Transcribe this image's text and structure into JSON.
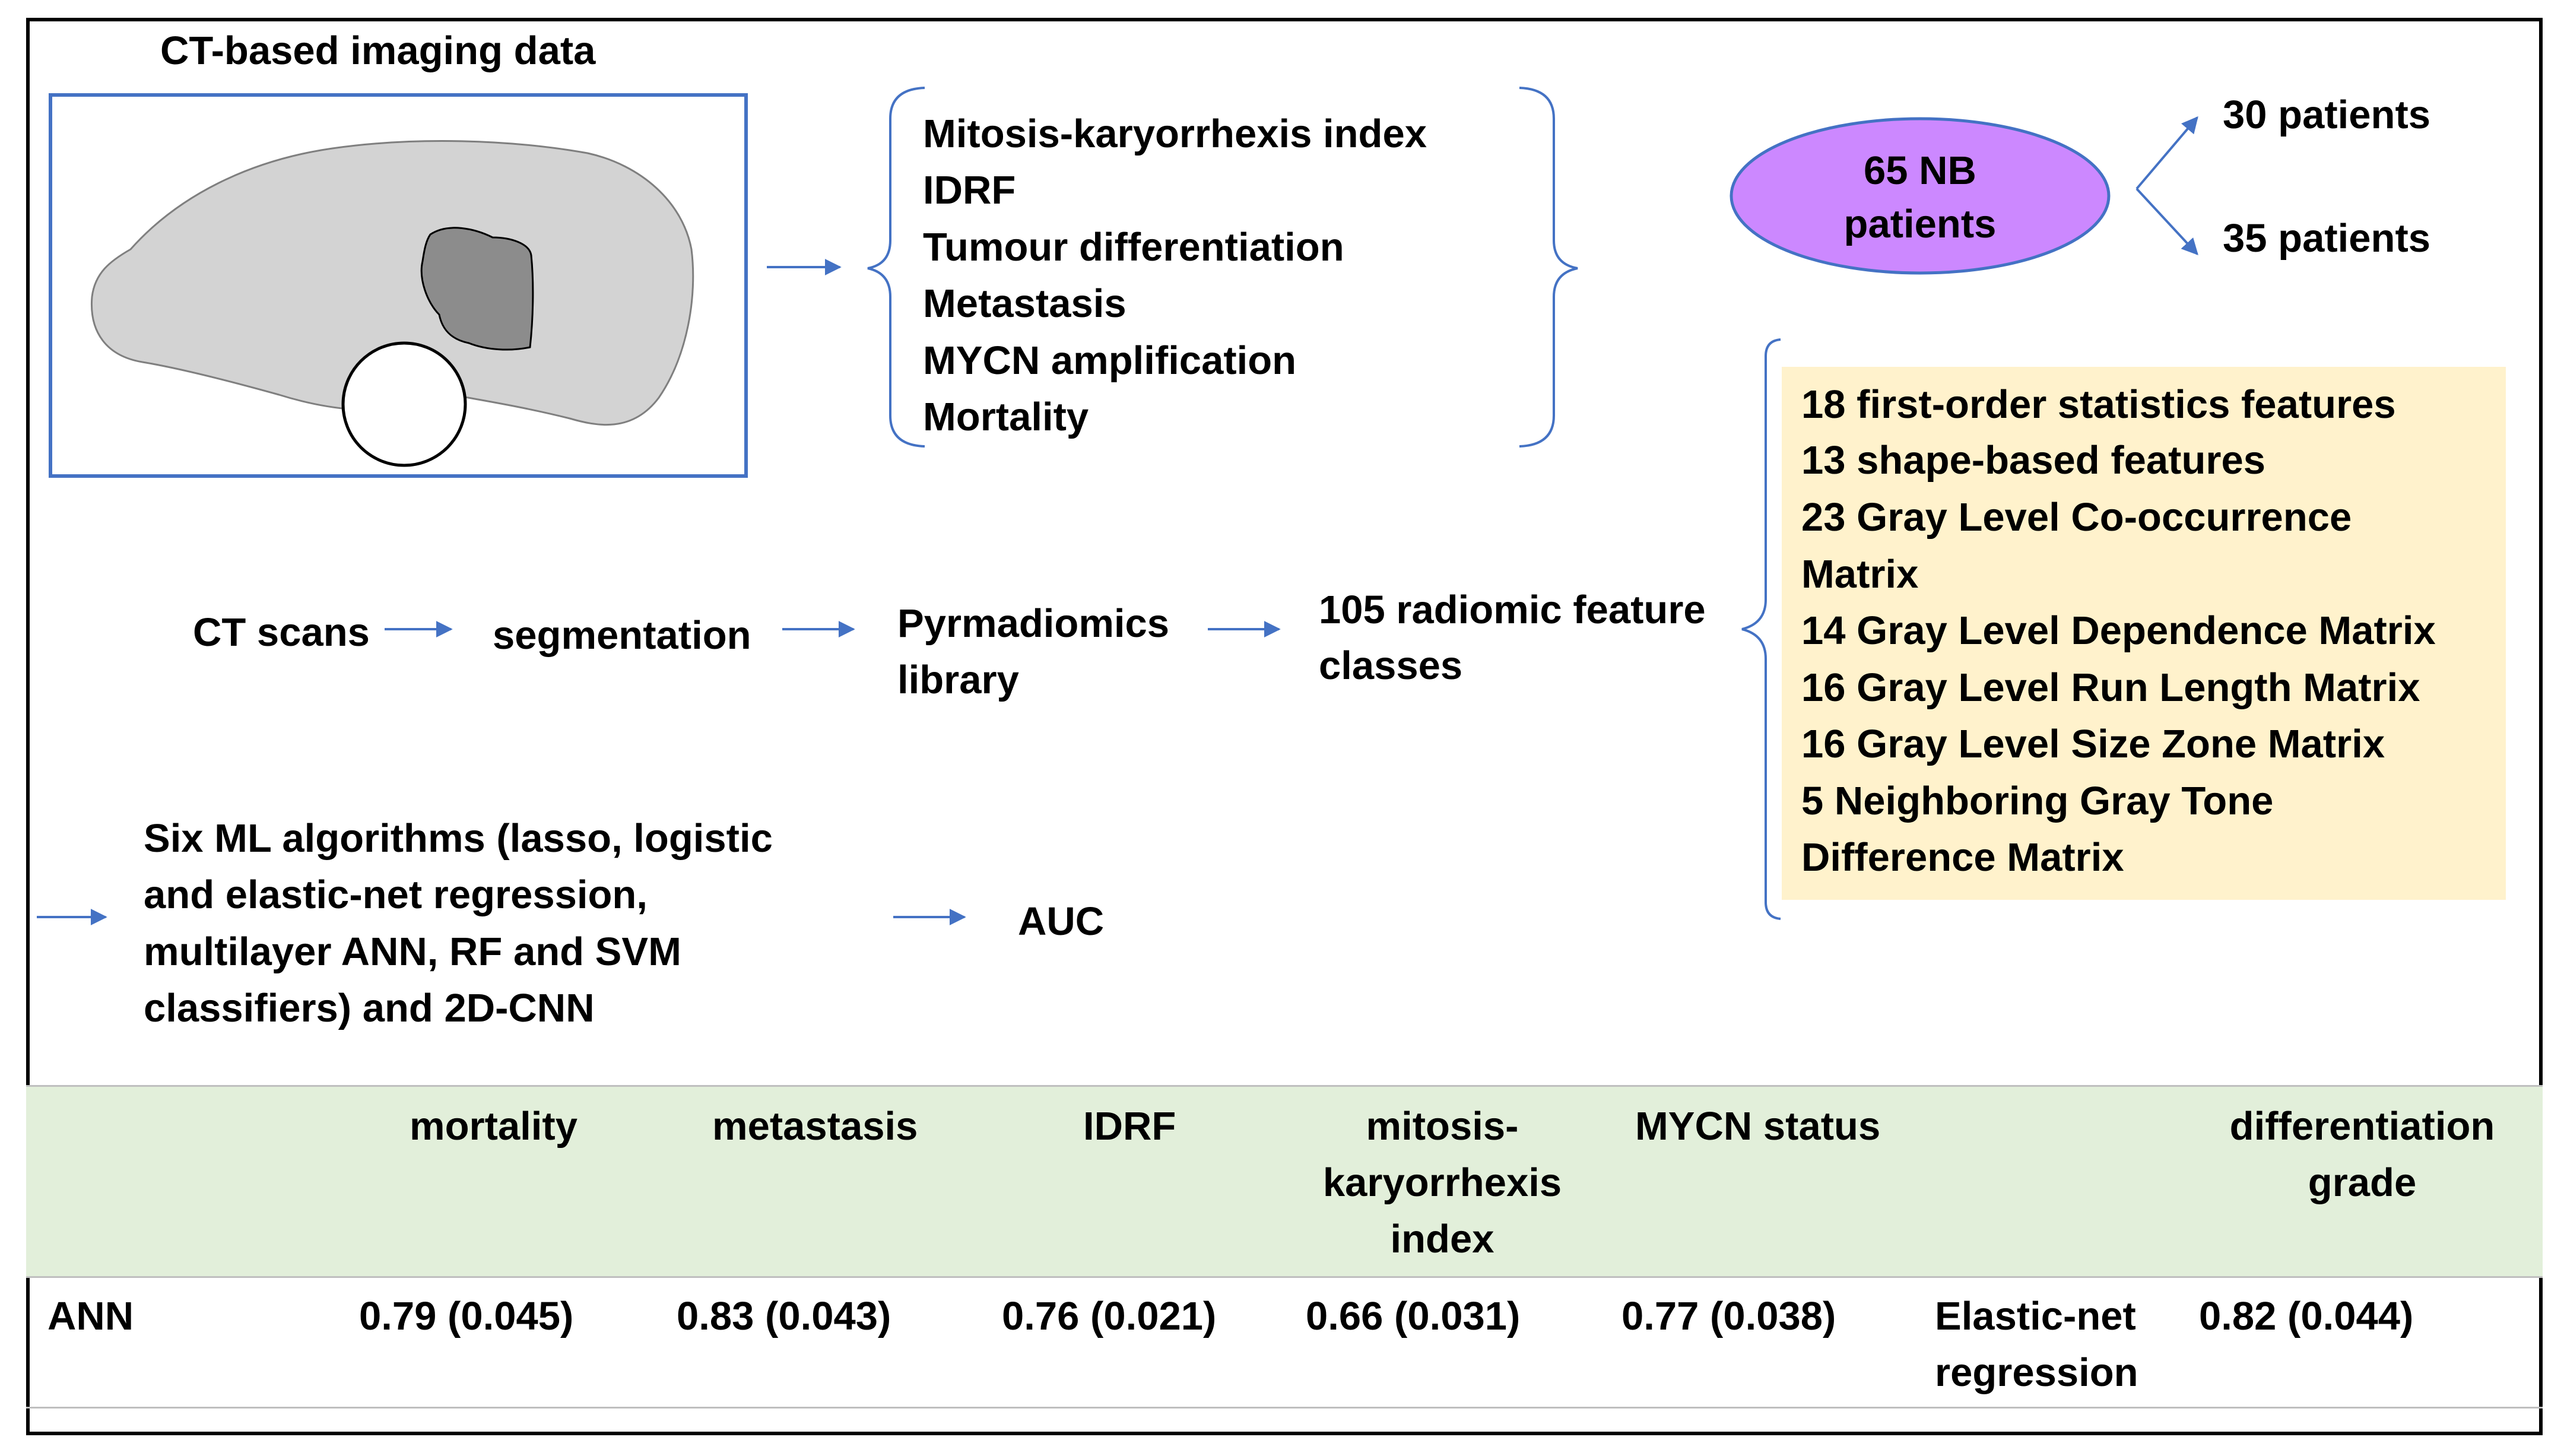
{
  "ct_title": "CT-based imaging data",
  "outcomes": [
    "Mitosis-karyorrhexis index",
    "IDRF",
    "Tumour differentiation",
    "Metastasis",
    "MYCN amplification",
    "Mortality"
  ],
  "cohort": {
    "line1": "65 NB",
    "line2": "patients",
    "split_a": "30 patients",
    "split_b": "35 patients"
  },
  "pipeline": {
    "ct_scans": "CT scans",
    "segmentation": "segmentation",
    "pyradiomics_1": "Pyrmadiomics",
    "pyradiomics_2": "library",
    "features_1": "105 radiomic feature",
    "features_2": "classes"
  },
  "feature_classes": [
    "18 first-order statistics features",
    "13 shape-based features",
    "23 Gray Level Co-occurrence",
    "Matrix",
    "14 Gray Level Dependence Matrix",
    "16 Gray Level Run Length Matrix",
    "16 Gray Level Size Zone Matrix",
    "5 Neighboring Gray Tone",
    "Difference Matrix"
  ],
  "ml": {
    "lines": [
      "Six ML algorithms (lasso, logistic",
      "and elastic-net regression,",
      "multilayer ANN, RF and SVM",
      "classifiers) and 2D-CNN"
    ],
    "metric": "AUC"
  },
  "table": {
    "headers": {
      "mortality": "mortality",
      "metastasis": "metastasis",
      "idrf": "IDRF",
      "mki_1": "mitosis-",
      "mki_2": "karyorrhexis",
      "mki_3": "index",
      "mycn": "MYCN status",
      "diff_1": "differentiation",
      "diff_2": "grade"
    },
    "row": {
      "model": "ANN",
      "mortality": "0.79 (0.045)",
      "metastasis": "0.83 (0.043)",
      "idrf": "0.76 (0.021)",
      "mki": "0.66 (0.031)",
      "mycn": "0.77 (0.038)",
      "alt_model_1": "Elastic-net",
      "alt_model_2": "regression",
      "differentiation": "0.82 (0.044)"
    }
  },
  "colors": {
    "arrow": "#4472c4",
    "ellipse_fill": "#cc88ff",
    "ellipse_stroke": "#4472c4",
    "feature_box": "#fff2cc",
    "table_header": "#e2efda"
  }
}
